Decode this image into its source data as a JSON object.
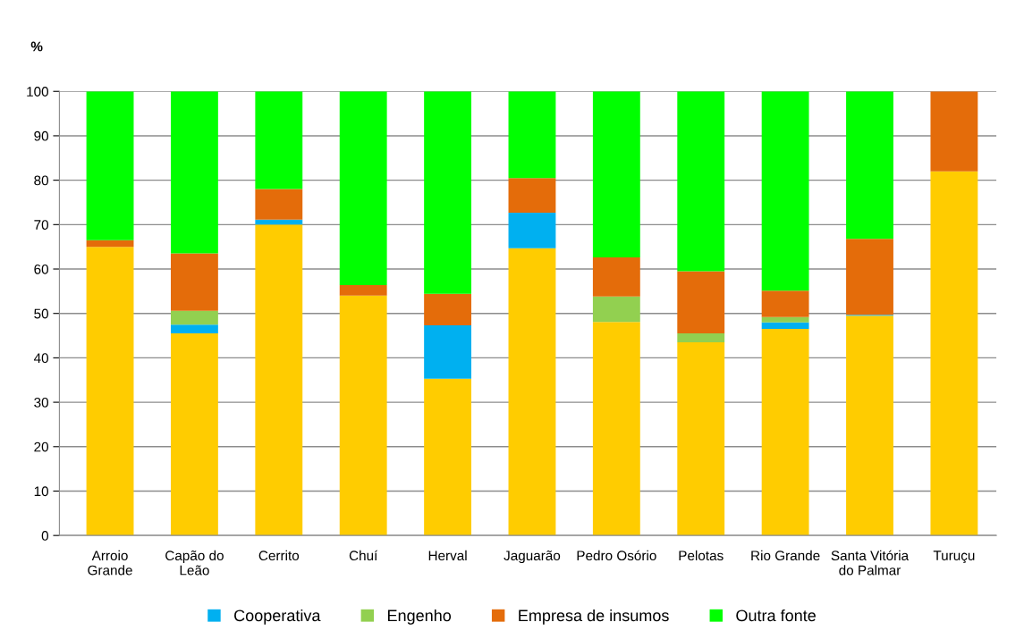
{
  "chart_data": {
    "type": "bar",
    "stacked": true,
    "ylabel": "%",
    "categories": [
      "Arroio Grande",
      "Capão do Leão",
      "Cerrito",
      "Chuí",
      "Herval",
      "Jaguarão",
      "Pedro Osório",
      "Pelotas",
      "Rio Grande",
      "Santa Vitória do Palmar",
      "Turuçu"
    ],
    "series": [
      {
        "color": "#ffcc00",
        "values": [
          65,
          45.5,
          70,
          54,
          35.3,
          64.7,
          48.1,
          43.5,
          46.5,
          49.5,
          82
        ]
      },
      {
        "name": "Cooperativa",
        "color": "#00b0f0",
        "values": [
          0,
          2,
          1.1,
          0,
          12,
          8,
          0,
          0,
          1.5,
          0.2,
          0
        ]
      },
      {
        "name": "Engenho",
        "color": "#92d050",
        "values": [
          0,
          3.1,
          0,
          0,
          0,
          0,
          5.7,
          2,
          1.2,
          0,
          0
        ]
      },
      {
        "name": "Empresa de insumos",
        "color": "#e46c0a",
        "values": [
          1.5,
          12.9,
          6.9,
          2.4,
          7.1,
          7.8,
          8.8,
          14,
          5.9,
          17.1,
          18
        ]
      },
      {
        "name": "Outra fonte",
        "color": "#00ff00",
        "values": [
          33.5,
          36.5,
          22,
          43.6,
          45.6,
          19.5,
          37.4,
          40.5,
          44.9,
          33.2,
          0
        ]
      }
    ],
    "ylim": [
      0,
      100
    ],
    "yticks": [
      0,
      10,
      20,
      30,
      40,
      50,
      60,
      70,
      80,
      90,
      100
    ],
    "grid": "y",
    "legend": "bottom"
  }
}
